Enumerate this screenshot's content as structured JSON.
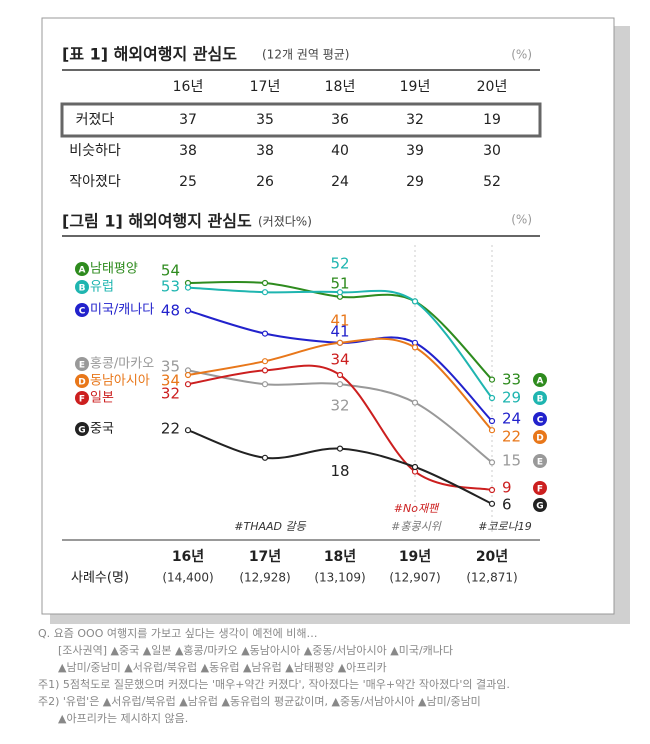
{
  "table": {
    "title": "[표 1] 해외여행지 관심도",
    "subtitle": "(12개 권역 평균)",
    "unit": "(%)",
    "columns": [
      "16년",
      "17년",
      "18년",
      "19년",
      "20년"
    ],
    "rows": [
      [
        "커졌다",
        37,
        35,
        36,
        32,
        19
      ],
      [
        "비슷하다",
        38,
        38,
        40,
        39,
        30
      ],
      [
        "작아졌다",
        25,
        26,
        24,
        29,
        52
      ]
    ]
  },
  "chart_data": {
    "type": "line",
    "title": "[그림 1] 해외여행지 관심도",
    "subtitle": "(커졌다%)",
    "unit": "(%)",
    "categories": [
      "16년",
      "17년",
      "18년",
      "19년",
      "20년"
    ],
    "sample_label": "사례수(명)",
    "sample_sizes": [
      "(14,400)",
      "(12,928)",
      "(13,109)",
      "(12,907)",
      "(12,871)"
    ],
    "data_label_indices": [
      0,
      2,
      4
    ],
    "series": [
      {
        "badge": "A",
        "name": "남태평양",
        "color": "#2e8b1e",
        "values": [
          54,
          54,
          51,
          50,
          33
        ]
      },
      {
        "badge": "B",
        "name": "유럽",
        "color": "#1fb5b0",
        "values": [
          53,
          52,
          52,
          50,
          29
        ]
      },
      {
        "badge": "C",
        "name": "미국/캐나다",
        "color": "#2222cc",
        "values": [
          48,
          43,
          41,
          41,
          24
        ]
      },
      {
        "badge": "E",
        "name": "홍콩/마카오",
        "color": "#999999",
        "values": [
          35,
          32,
          32,
          28,
          15
        ]
      },
      {
        "badge": "D",
        "name": "동남아시아",
        "color": "#e8771a",
        "values": [
          34,
          37,
          41,
          40,
          22
        ]
      },
      {
        "badge": "F",
        "name": "일본",
        "color": "#cc1f1f",
        "values": [
          32,
          35,
          34,
          13,
          9
        ]
      },
      {
        "badge": "G",
        "name": "중국",
        "color": "#222222",
        "values": [
          22,
          16,
          18,
          14,
          6
        ]
      }
    ],
    "annotations": [
      {
        "text": "#THAAD 갈등",
        "color": "#333333"
      },
      {
        "text": "#No재팬",
        "color": "#cc1f1f"
      },
      {
        "text": "#홍콩시위",
        "color": "#777777"
      },
      {
        "text": "#코로나19",
        "color": "#333333"
      }
    ]
  },
  "notes": [
    "Q. 요즘 OOO 여행지를 가보고 싶다는 생각이 예전에 비해…",
    "[조사권역] ▲중국 ▲일본 ▲홍콩/마카오 ▲동남아시아 ▲중동/서남아시아 ▲미국/캐나다",
    "▲남미/중남미 ▲서유럽/북유럽 ▲동유럽 ▲남유럽 ▲남태평양 ▲아프리카",
    "주1) 5점척도로 질문했으며 커졌다는 '매우+약간 커졌다', 작아졌다는 '매우+약간 작아졌다'의 결과임.",
    "주2) '유럽'은 ▲서유럽/북유럽 ▲남유럽 ▲동유럽의 평균값이며, ▲중동/서남아시아 ▲남미/중남미",
    "▲아프리카는 제시하지 않음."
  ]
}
